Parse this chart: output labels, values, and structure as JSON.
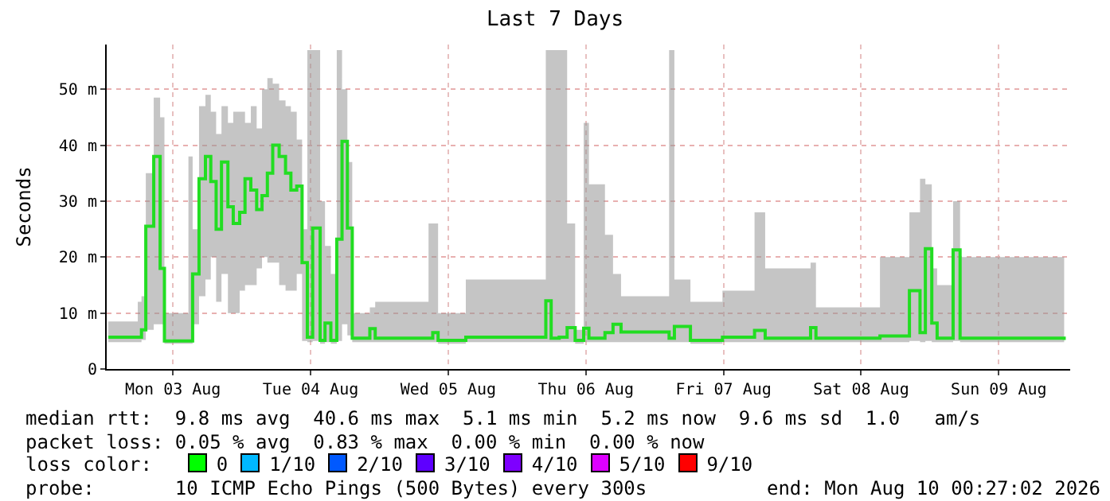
{
  "chart_data": {
    "type": "step",
    "title": "Last 7 Days",
    "ylabel": "Seconds",
    "x": [
      "2026-08-03T00:44",
      "2026-08-03T05:52",
      "2026-08-03T06:31",
      "2026-08-03T07:16",
      "2026-08-03T08:39",
      "2026-08-03T09:46",
      "2026-08-03T10:31",
      "2026-08-03T14:42",
      "2026-08-03T15:26",
      "2026-08-03T16:33",
      "2026-08-03T17:40",
      "2026-08-03T18:36",
      "2026-08-03T19:32",
      "2026-08-03T20:28",
      "2026-08-03T21:35",
      "2026-08-03T22:31",
      "2026-08-03T23:38",
      "2026-08-04T00:34",
      "2026-08-04T01:35",
      "2026-08-04T02:36",
      "2026-08-04T03:32",
      "2026-08-04T04:28",
      "2026-08-04T05:24",
      "2026-08-04T06:31",
      "2026-08-04T07:38",
      "2026-08-04T08:34",
      "2026-08-04T09:35",
      "2026-08-04T10:31",
      "2026-08-04T11:26",
      "2026-08-04T12:22",
      "2026-08-04T13:40",
      "2026-08-04T14:31",
      "2026-08-04T15:32",
      "2026-08-04T16:34",
      "2026-08-04T17:29",
      "2026-08-04T18:25",
      "2026-08-04T19:16",
      "2026-08-04T22:20",
      "2026-08-04T23:16",
      "2026-08-05T08:34",
      "2026-08-05T09:18",
      "2026-08-05T10:14",
      "2026-08-05T15:04",
      "2026-08-06T05:01",
      "2026-08-06T05:57",
      "2026-08-06T07:21",
      "2026-08-06T08:44",
      "2026-08-06T10:08",
      "2026-08-06T11:37",
      "2026-08-06T12:32",
      "2026-08-06T15:20",
      "2026-08-06T16:44",
      "2026-08-06T18:08",
      "2026-08-07T02:31",
      "2026-08-07T03:26",
      "2026-08-07T06:14",
      "2026-08-07T11:49",
      "2026-08-07T17:25",
      "2026-08-07T19:16",
      "2026-08-08T03:11",
      "2026-08-08T04:07",
      "2026-08-08T15:17",
      "2026-08-08T20:25",
      "2026-08-08T22:16",
      "2026-08-08T23:12",
      "2026-08-09T00:19",
      "2026-08-09T01:15",
      "2026-08-09T04:02",
      "2026-08-09T05:15",
      "2026-08-09T23:24"
    ],
    "series": [
      {
        "color": "#22dd22",
        "values": [
          5.7,
          5.7,
          7,
          25.5,
          38,
          18,
          5,
          5,
          17,
          34,
          38,
          33.5,
          25,
          37,
          29,
          26,
          28,
          34,
          32,
          28.5,
          31,
          35,
          40,
          38,
          35,
          32,
          32.7,
          19,
          5.7,
          25.2,
          5.1,
          8.2,
          5.1,
          23.2,
          40.7,
          25.2,
          5.5,
          7.2,
          5.5,
          5.5,
          6.5,
          5.1,
          5.7,
          12.2,
          5.5,
          5.7,
          7.4,
          5.1,
          7.3,
          5.5,
          6.5,
          8,
          6.6,
          5.5,
          7.6,
          5.1,
          5.7,
          6.9,
          5.5,
          7.4,
          5.5,
          5.9,
          14,
          6.5,
          21.5,
          8.2,
          5.5,
          21.3,
          5.5,
          5.2
        ],
        "lower": [
          4.8,
          4.8,
          5.2,
          7,
          8,
          8,
          4.5,
          4.5,
          8,
          13,
          16,
          20,
          12,
          17,
          10,
          10,
          14,
          15,
          15,
          18,
          20,
          19,
          19,
          15,
          14,
          14,
          17,
          5,
          4.8,
          5,
          4.5,
          4.8,
          4.5,
          5,
          8,
          6,
          4.8,
          4.8,
          4.8,
          4.8,
          4.8,
          4.5,
          4.8,
          4.8,
          4.8,
          4.8,
          4.8,
          4.5,
          4.8,
          4.8,
          4.8,
          4.8,
          4.8,
          4.8,
          4.8,
          4.5,
          4.8,
          4.8,
          4.8,
          4.8,
          4.8,
          4.8,
          5,
          4.8,
          5,
          4.8,
          4.8,
          5,
          4.8,
          4.8
        ],
        "upper": [
          8.5,
          12,
          13,
          35,
          48.5,
          45,
          10,
          38,
          25,
          47,
          49,
          46,
          42,
          47,
          44,
          46,
          46,
          44,
          47,
          43,
          50,
          52,
          51,
          48,
          47,
          46,
          41,
          25,
          57,
          57,
          30,
          22,
          17,
          57,
          50,
          37,
          10,
          11,
          12,
          26,
          26,
          10,
          16,
          57,
          57,
          57,
          26,
          7,
          44,
          33,
          24,
          17,
          13,
          57,
          16,
          12,
          14,
          28,
          18,
          19,
          11,
          20,
          28,
          34,
          33,
          18,
          15,
          30,
          20,
          9
        ]
      }
    ],
    "xlim": [
      "2026-08-03T00:27",
      "2026-08-10T00:27"
    ],
    "xticks": [
      {
        "value": "2026-08-03T12:00",
        "label": "Mon 03 Aug"
      },
      {
        "value": "2026-08-04T12:00",
        "label": "Tue 04 Aug"
      },
      {
        "value": "2026-08-05T12:00",
        "label": "Wed 05 Aug"
      },
      {
        "value": "2026-08-06T12:00",
        "label": "Thu 06 Aug"
      },
      {
        "value": "2026-08-07T12:00",
        "label": "Fri 07 Aug"
      },
      {
        "value": "2026-08-08T12:00",
        "label": "Sat 08 Aug"
      },
      {
        "value": "2026-08-09T12:00",
        "label": "Sun 09 Aug"
      }
    ],
    "ylim": [
      0,
      58
    ],
    "yticks": [
      0,
      {
        "value": 10,
        "label": "10 m"
      },
      {
        "value": 20,
        "label": "20 m"
      },
      {
        "value": 30,
        "label": "30 m"
      },
      {
        "value": 40,
        "label": "40 m"
      },
      {
        "value": 50,
        "label": "50 m"
      }
    ],
    "grid": true,
    "annotations": [
      "median rtt:  9.8 ms avg  40.6 ms max  5.1 ms min  5.2 ms now  9.6 ms sd  1.0   am/s",
      "packet loss: 0.05 % avg  0.83 % max  0.00 % min  0.00 % now",
      "loss color:",
      "0",
      "1/10",
      "2/10",
      "3/10",
      "4/10",
      "5/10",
      "9/10",
      "probe:       10 ICMP Echo Pings (500 Bytes) every 300s",
      "end: Mon Aug 10 00:27:02 2026"
    ]
  }
}
